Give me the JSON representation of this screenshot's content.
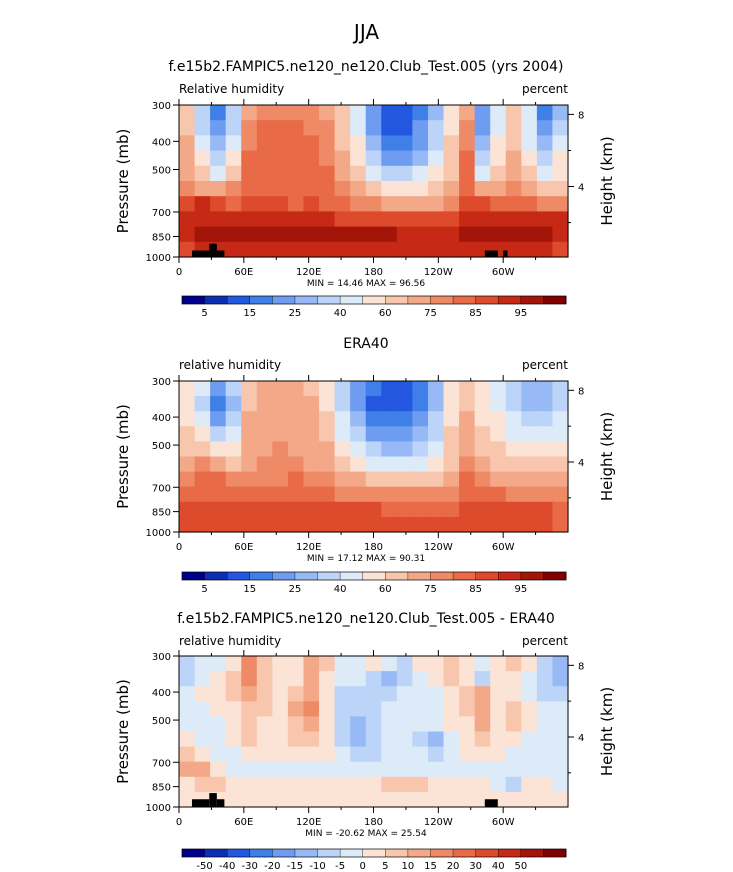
{
  "page": {
    "title": "JJA"
  },
  "chart_data": [
    {
      "type": "heatmap",
      "title": "f.e15b2.FAMPIC5.ne120_ne120.Club_Test.005 (yrs 2004)",
      "left_label": "Relative humidity",
      "right_label": "percent",
      "ylabel": "Pressure (mb)",
      "y2label": "Height (km)",
      "x_ticks": [
        {
          "lon": 0,
          "label": "0"
        },
        {
          "lon": 60,
          "label": "60E"
        },
        {
          "lon": 120,
          "label": "120E"
        },
        {
          "lon": 180,
          "label": "180"
        },
        {
          "lon": 240,
          "label": "120W"
        },
        {
          "lon": 300,
          "label": "60W"
        }
      ],
      "xlim": [
        0,
        360
      ],
      "y_ticks": [
        300,
        400,
        500,
        700,
        850,
        1000
      ],
      "ylim": [
        300,
        1000
      ],
      "y_scale": "log",
      "y2_ticks": [
        8,
        4
      ],
      "stats": "MIN =   14.46   MAX =   96.56",
      "colorbar_labels": [
        "5",
        "15",
        "25",
        "40",
        "60",
        "75",
        "85",
        "95"
      ],
      "colors": [
        "#00008a",
        "#0b2fb3",
        "#2457e0",
        "#3f7fe8",
        "#6e9cf0",
        "#97b9f5",
        "#bcd4f7",
        "#ddeaf8",
        "#fbe3d5",
        "#f8c6ad",
        "#f3a888",
        "#ee8a66",
        "#e86a47",
        "#de4a2c",
        "#c62a16",
        "#a31508",
        "#800000"
      ],
      "field": [
        [
          9,
          6,
          3,
          6,
          10,
          11,
          11,
          11,
          11,
          10,
          9,
          7,
          4,
          2,
          2,
          3,
          5,
          8,
          10,
          4,
          7,
          9,
          7,
          3,
          5
        ],
        [
          9,
          6,
          4,
          6,
          11,
          12,
          12,
          12,
          11,
          11,
          9,
          7,
          4,
          2,
          2,
          4,
          6,
          8,
          11,
          4,
          7,
          9,
          7,
          4,
          6
        ],
        [
          10,
          7,
          5,
          7,
          11,
          12,
          12,
          12,
          12,
          11,
          9,
          8,
          5,
          3,
          3,
          4,
          6,
          9,
          11,
          5,
          8,
          9,
          7,
          5,
          7
        ],
        [
          10,
          8,
          6,
          8,
          12,
          12,
          12,
          12,
          12,
          11,
          10,
          8,
          6,
          4,
          4,
          5,
          7,
          9,
          12,
          6,
          8,
          10,
          8,
          6,
          8
        ],
        [
          10,
          9,
          7,
          9,
          12,
          12,
          12,
          12,
          12,
          12,
          10,
          9,
          7,
          6,
          6,
          7,
          8,
          9,
          12,
          7,
          9,
          10,
          9,
          7,
          8
        ],
        [
          11,
          10,
          10,
          11,
          12,
          12,
          12,
          12,
          12,
          12,
          11,
          10,
          9,
          8,
          8,
          8,
          9,
          10,
          12,
          10,
          10,
          11,
          10,
          9,
          9
        ],
        [
          13,
          14,
          13,
          12,
          13,
          13,
          13,
          12,
          13,
          12,
          12,
          11,
          11,
          10,
          10,
          10,
          10,
          11,
          13,
          13,
          12,
          12,
          12,
          11,
          11
        ],
        [
          14,
          14,
          14,
          14,
          14,
          14,
          14,
          14,
          14,
          14,
          13,
          13,
          13,
          13,
          13,
          13,
          13,
          13,
          14,
          14,
          14,
          14,
          14,
          14,
          14
        ],
        [
          14,
          15,
          15,
          15,
          15,
          15,
          15,
          15,
          15,
          15,
          15,
          15,
          15,
          15,
          14,
          14,
          14,
          14,
          15,
          15,
          15,
          15,
          15,
          15,
          14
        ],
        [
          13,
          14,
          14,
          14,
          14,
          14,
          14,
          14,
          14,
          14,
          14,
          14,
          14,
          14,
          14,
          14,
          14,
          14,
          14,
          14,
          14,
          14,
          14,
          14,
          13
        ]
      ],
      "topography": [
        {
          "lon0": 12,
          "lon1": 28,
          "p_top": 950
        },
        {
          "lon0": 28,
          "lon1": 35,
          "p_top": 900
        },
        {
          "lon0": 35,
          "lon1": 42,
          "p_top": 950
        },
        {
          "lon0": 283,
          "lon1": 295,
          "p_top": 950
        },
        {
          "lon0": 300,
          "lon1": 304,
          "p_top": 950
        }
      ]
    },
    {
      "type": "heatmap",
      "title": "ERA40",
      "left_label": "relative humidity",
      "right_label": "percent",
      "ylabel": "Pressure (mb)",
      "y2label": "Height (km)",
      "x_ticks": [
        {
          "lon": 0,
          "label": "0"
        },
        {
          "lon": 60,
          "label": "60E"
        },
        {
          "lon": 120,
          "label": "120E"
        },
        {
          "lon": 180,
          "label": "180"
        },
        {
          "lon": 240,
          "label": "120W"
        },
        {
          "lon": 300,
          "label": "60W"
        }
      ],
      "xlim": [
        0,
        360
      ],
      "y_ticks": [
        300,
        400,
        500,
        700,
        850,
        1000
      ],
      "ylim": [
        300,
        1000
      ],
      "y_scale": "log",
      "y2_ticks": [
        8,
        4
      ],
      "stats": "MIN =   17.12   MAX =   90.31",
      "colorbar_labels": [
        "5",
        "15",
        "25",
        "40",
        "60",
        "75",
        "85",
        "95"
      ],
      "colors": [
        "#00008a",
        "#0b2fb3",
        "#2457e0",
        "#3f7fe8",
        "#6e9cf0",
        "#97b9f5",
        "#bcd4f7",
        "#ddeaf8",
        "#fbe3d5",
        "#f8c6ad",
        "#f3a888",
        "#ee8a66",
        "#e86a47",
        "#de4a2c",
        "#c62a16",
        "#a31508",
        "#800000"
      ],
      "field": [
        [
          8,
          7,
          4,
          6,
          9,
          10,
          10,
          10,
          9,
          8,
          6,
          4,
          3,
          2,
          2,
          3,
          5,
          8,
          9,
          8,
          7,
          6,
          5,
          5,
          6
        ],
        [
          8,
          6,
          3,
          5,
          9,
          10,
          10,
          10,
          10,
          8,
          6,
          4,
          2,
          2,
          2,
          3,
          5,
          8,
          9,
          8,
          7,
          6,
          5,
          5,
          6
        ],
        [
          8,
          7,
          4,
          6,
          10,
          10,
          10,
          10,
          10,
          9,
          7,
          5,
          3,
          3,
          3,
          4,
          6,
          8,
          10,
          8,
          8,
          7,
          6,
          6,
          7
        ],
        [
          9,
          8,
          6,
          7,
          10,
          10,
          10,
          10,
          10,
          9,
          7,
          6,
          4,
          4,
          4,
          5,
          6,
          9,
          10,
          9,
          8,
          7,
          7,
          7,
          7
        ],
        [
          9,
          9,
          8,
          8,
          10,
          10,
          11,
          10,
          10,
          10,
          8,
          7,
          6,
          5,
          5,
          6,
          7,
          9,
          10,
          9,
          9,
          8,
          8,
          8,
          8
        ],
        [
          10,
          11,
          10,
          9,
          10,
          11,
          11,
          11,
          10,
          10,
          9,
          8,
          7,
          7,
          7,
          7,
          8,
          9,
          11,
          10,
          9,
          9,
          9,
          9,
          9
        ],
        [
          11,
          12,
          12,
          11,
          11,
          11,
          11,
          12,
          11,
          11,
          10,
          10,
          9,
          9,
          9,
          9,
          9,
          10,
          12,
          11,
          10,
          10,
          10,
          10,
          10
        ],
        [
          12,
          12,
          12,
          12,
          12,
          12,
          12,
          12,
          12,
          12,
          11,
          11,
          11,
          11,
          11,
          11,
          11,
          11,
          12,
          12,
          12,
          11,
          11,
          11,
          11
        ],
        [
          13,
          13,
          13,
          13,
          13,
          13,
          13,
          13,
          13,
          13,
          13,
          13,
          13,
          12,
          12,
          12,
          12,
          12,
          13,
          13,
          13,
          13,
          13,
          13,
          12
        ],
        [
          13,
          13,
          13,
          13,
          13,
          13,
          13,
          13,
          13,
          13,
          13,
          13,
          13,
          13,
          13,
          13,
          13,
          13,
          13,
          13,
          13,
          13,
          13,
          13,
          12
        ]
      ],
      "topography": []
    },
    {
      "type": "heatmap",
      "title": "f.e15b2.FAMPIC5.ne120_ne120.Club_Test.005 - ERA40",
      "left_label": "relative humidity",
      "right_label": "percent",
      "ylabel": "Pressure (mb)",
      "y2label": "Height (km)",
      "x_ticks": [
        {
          "lon": 0,
          "label": "0"
        },
        {
          "lon": 60,
          "label": "60E"
        },
        {
          "lon": 120,
          "label": "120E"
        },
        {
          "lon": 180,
          "label": "180"
        },
        {
          "lon": 240,
          "label": "120W"
        },
        {
          "lon": 300,
          "label": "60W"
        }
      ],
      "xlim": [
        0,
        360
      ],
      "y_ticks": [
        300,
        400,
        500,
        700,
        850,
        1000
      ],
      "ylim": [
        300,
        1000
      ],
      "y_scale": "log",
      "y2_ticks": [
        8,
        4
      ],
      "stats": "MIN = -20.62   MAX =   25.54",
      "colorbar_labels": [
        "-50",
        "-40",
        "-30",
        "-20",
        "-15",
        "-10",
        "-5",
        "0",
        "5",
        "10",
        "15",
        "20",
        "30",
        "40",
        "50"
      ],
      "colors": [
        "#00008a",
        "#0b2fb3",
        "#2457e0",
        "#3f7fe8",
        "#6e9cf0",
        "#97b9f5",
        "#bcd4f7",
        "#ddeaf8",
        "#fbe3d5",
        "#f8c6ad",
        "#f3a888",
        "#ee8a66",
        "#e86a47",
        "#de4a2c",
        "#c62a16",
        "#a31508",
        "#800000"
      ],
      "field": [
        [
          6,
          7,
          7,
          8,
          11,
          9,
          8,
          8,
          10,
          9,
          7,
          7,
          8,
          7,
          6,
          8,
          8,
          9,
          8,
          7,
          8,
          9,
          8,
          6,
          5
        ],
        [
          6,
          7,
          8,
          9,
          11,
          9,
          8,
          8,
          10,
          8,
          7,
          7,
          6,
          5,
          6,
          7,
          8,
          9,
          8,
          6,
          8,
          8,
          7,
          6,
          5
        ],
        [
          7,
          8,
          8,
          9,
          10,
          9,
          8,
          9,
          10,
          8,
          6,
          6,
          6,
          6,
          7,
          7,
          7,
          8,
          9,
          10,
          8,
          8,
          7,
          6,
          6
        ],
        [
          7,
          7,
          8,
          8,
          9,
          9,
          8,
          10,
          11,
          8,
          6,
          6,
          6,
          7,
          7,
          7,
          7,
          8,
          9,
          10,
          8,
          9,
          8,
          7,
          7
        ],
        [
          7,
          7,
          7,
          8,
          9,
          8,
          8,
          9,
          10,
          8,
          6,
          5,
          6,
          7,
          7,
          7,
          7,
          8,
          8,
          10,
          8,
          9,
          8,
          7,
          7
        ],
        [
          8,
          7,
          7,
          8,
          9,
          8,
          8,
          9,
          9,
          8,
          6,
          5,
          6,
          7,
          7,
          6,
          5,
          7,
          8,
          9,
          8,
          8,
          7,
          7,
          7
        ],
        [
          9,
          8,
          7,
          7,
          8,
          8,
          8,
          8,
          8,
          8,
          7,
          6,
          6,
          7,
          7,
          7,
          6,
          7,
          8,
          8,
          8,
          7,
          7,
          7,
          7
        ],
        [
          10,
          10,
          8,
          7,
          7,
          7,
          7,
          7,
          7,
          7,
          7,
          7,
          7,
          7,
          7,
          7,
          7,
          7,
          7,
          7,
          7,
          7,
          7,
          7,
          7
        ],
        [
          8,
          9,
          9,
          8,
          8,
          8,
          8,
          8,
          8,
          8,
          8,
          8,
          8,
          9,
          9,
          9,
          8,
          8,
          8,
          8,
          7,
          6,
          8,
          8,
          7
        ],
        [
          8,
          8,
          8,
          8,
          8,
          8,
          8,
          8,
          8,
          8,
          8,
          8,
          8,
          8,
          8,
          8,
          8,
          8,
          8,
          8,
          8,
          8,
          8,
          8,
          8
        ]
      ],
      "topography": [
        {
          "lon0": 12,
          "lon1": 28,
          "p_top": 940
        },
        {
          "lon0": 28,
          "lon1": 35,
          "p_top": 895
        },
        {
          "lon0": 35,
          "lon1": 42,
          "p_top": 940
        },
        {
          "lon0": 283,
          "lon1": 295,
          "p_top": 940
        }
      ]
    }
  ]
}
